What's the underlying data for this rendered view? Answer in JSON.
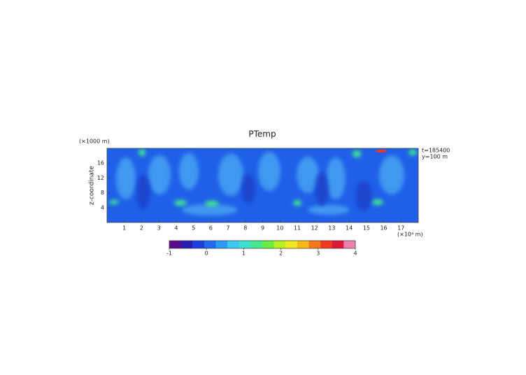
{
  "chart_data": {
    "type": "heatmap",
    "title": "PTemp",
    "y_label": "z-coordinate",
    "y_unit": "(×1000 m)",
    "x_unit": "(×10⁴ m)",
    "annotations": [
      "t=185400",
      "y=100 m"
    ],
    "xlim": [
      0,
      18
    ],
    "xticks": [
      1,
      2,
      3,
      4,
      5,
      6,
      7,
      8,
      9,
      10,
      11,
      12,
      13,
      14,
      15,
      16,
      17
    ],
    "ylim": [
      0,
      20
    ],
    "yticks": [
      4,
      8,
      12,
      16
    ],
    "colorbar": {
      "lim": [
        -1,
        4
      ],
      "ticks": [
        -1,
        0,
        1,
        2,
        3,
        4
      ],
      "colors": [
        "#5a0a8c",
        "#2a1bb0",
        "#1c3ee0",
        "#1f6af0",
        "#2a9af5",
        "#3cc8f5",
        "#3ee0d0",
        "#45e890",
        "#6aee40",
        "#b8f020",
        "#f0e820",
        "#f8b818",
        "#f87818",
        "#f03a20",
        "#e01838",
        "#f080b0"
      ]
    }
  }
}
